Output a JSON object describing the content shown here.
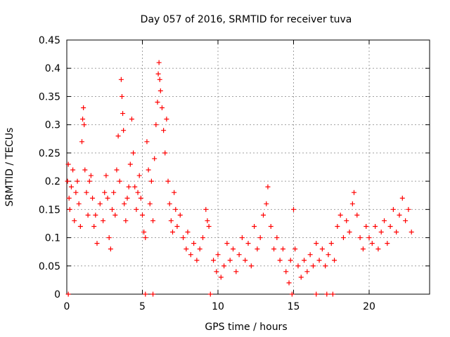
{
  "chart_data": {
    "type": "scatter",
    "title": "Day 057 of 2016, SRMTID for receiver tuva",
    "xlabel": "GPS time / hours",
    "ylabel": "SRMTID / TECUs",
    "xlim": [
      0,
      24
    ],
    "ylim": [
      0,
      0.45
    ],
    "xticks": [
      0,
      5,
      10,
      15,
      20
    ],
    "xtick_labels": [
      "0",
      "5",
      "10",
      "15",
      "20"
    ],
    "yticks": [
      0,
      0.05,
      0.1,
      0.15,
      0.2,
      0.25,
      0.3,
      0.35,
      0.4,
      0.45
    ],
    "ytick_labels": [
      "0",
      "0.05",
      "0.1",
      "0.15",
      "0.2",
      "0.25",
      "0.3",
      "0.35",
      "0.4",
      "0.45"
    ],
    "grid": true,
    "marker": "+",
    "color": "#ff0000",
    "series": [
      {
        "points": [
          [
            0.05,
            0.2
          ],
          [
            0.1,
            0.23
          ],
          [
            0.15,
            0.17
          ],
          [
            0.2,
            0.15
          ],
          [
            0.3,
            0.19
          ],
          [
            0.4,
            0.22
          ],
          [
            0.5,
            0.13
          ],
          [
            0.6,
            0.18
          ],
          [
            0.7,
            0.2
          ],
          [
            0.8,
            0.16
          ],
          [
            0.9,
            0.12
          ],
          [
            1.0,
            0.27
          ],
          [
            1.05,
            0.31
          ],
          [
            1.1,
            0.33
          ],
          [
            1.15,
            0.3
          ],
          [
            1.2,
            0.22
          ],
          [
            1.3,
            0.18
          ],
          [
            1.4,
            0.14
          ],
          [
            1.5,
            0.2
          ],
          [
            1.6,
            0.21
          ],
          [
            1.7,
            0.17
          ],
          [
            1.8,
            0.12
          ],
          [
            1.9,
            0.14
          ],
          [
            2.0,
            0.09
          ],
          [
            2.2,
            0.16
          ],
          [
            2.4,
            0.13
          ],
          [
            2.5,
            0.18
          ],
          [
            2.6,
            0.21
          ],
          [
            2.7,
            0.17
          ],
          [
            2.8,
            0.1
          ],
          [
            2.9,
            0.08
          ],
          [
            3.0,
            0.15
          ],
          [
            3.1,
            0.18
          ],
          [
            3.2,
            0.14
          ],
          [
            3.3,
            0.22
          ],
          [
            3.4,
            0.28
          ],
          [
            3.5,
            0.2
          ],
          [
            3.6,
            0.38
          ],
          [
            3.65,
            0.35
          ],
          [
            3.7,
            0.32
          ],
          [
            3.75,
            0.29
          ],
          [
            3.8,
            0.16
          ],
          [
            3.9,
            0.13
          ],
          [
            4.0,
            0.17
          ],
          [
            4.1,
            0.19
          ],
          [
            4.2,
            0.23
          ],
          [
            4.3,
            0.31
          ],
          [
            4.4,
            0.25
          ],
          [
            4.5,
            0.19
          ],
          [
            4.6,
            0.15
          ],
          [
            4.7,
            0.18
          ],
          [
            4.8,
            0.21
          ],
          [
            4.9,
            0.17
          ],
          [
            5.0,
            0.14
          ],
          [
            5.1,
            0.11
          ],
          [
            5.2,
            0.1
          ],
          [
            5.3,
            0.27
          ],
          [
            5.4,
            0.22
          ],
          [
            5.5,
            0.16
          ],
          [
            5.6,
            0.2
          ],
          [
            5.7,
            0.13
          ],
          [
            5.8,
            0.24
          ],
          [
            5.9,
            0.3
          ],
          [
            6.0,
            0.34
          ],
          [
            6.05,
            0.39
          ],
          [
            6.1,
            0.41
          ],
          [
            6.15,
            0.38
          ],
          [
            6.2,
            0.36
          ],
          [
            6.3,
            0.33
          ],
          [
            6.4,
            0.29
          ],
          [
            6.5,
            0.25
          ],
          [
            6.6,
            0.31
          ],
          [
            6.7,
            0.2
          ],
          [
            6.8,
            0.16
          ],
          [
            6.9,
            0.13
          ],
          [
            7.0,
            0.11
          ],
          [
            7.1,
            0.18
          ],
          [
            7.2,
            0.15
          ],
          [
            7.3,
            0.12
          ],
          [
            7.5,
            0.14
          ],
          [
            7.7,
            0.1
          ],
          [
            7.9,
            0.08
          ],
          [
            8.0,
            0.11
          ],
          [
            8.2,
            0.07
          ],
          [
            8.4,
            0.09
          ],
          [
            8.6,
            0.06
          ],
          [
            8.8,
            0.08
          ],
          [
            9.0,
            0.1
          ],
          [
            9.2,
            0.15
          ],
          [
            9.3,
            0.13
          ],
          [
            9.4,
            0.12
          ],
          [
            9.7,
            0.06
          ],
          [
            9.9,
            0.04
          ],
          [
            10.0,
            0.07
          ],
          [
            10.2,
            0.03
          ],
          [
            10.4,
            0.05
          ],
          [
            10.6,
            0.09
          ],
          [
            10.8,
            0.06
          ],
          [
            11.0,
            0.08
          ],
          [
            11.2,
            0.04
          ],
          [
            11.4,
            0.07
          ],
          [
            11.6,
            0.1
          ],
          [
            11.8,
            0.06
          ],
          [
            12.0,
            0.09
          ],
          [
            12.2,
            0.05
          ],
          [
            12.4,
            0.12
          ],
          [
            12.6,
            0.08
          ],
          [
            12.8,
            0.1
          ],
          [
            13.0,
            0.14
          ],
          [
            13.2,
            0.16
          ],
          [
            13.3,
            0.19
          ],
          [
            13.5,
            0.12
          ],
          [
            13.7,
            0.08
          ],
          [
            13.9,
            0.1
          ],
          [
            14.1,
            0.06
          ],
          [
            14.3,
            0.08
          ],
          [
            14.5,
            0.04
          ],
          [
            14.7,
            0.02
          ],
          [
            14.8,
            0.06
          ],
          [
            15.0,
            0.15
          ],
          [
            15.1,
            0.08
          ],
          [
            15.3,
            0.05
          ],
          [
            15.5,
            0.03
          ],
          [
            15.7,
            0.06
          ],
          [
            15.9,
            0.04
          ],
          [
            16.1,
            0.07
          ],
          [
            16.3,
            0.05
          ],
          [
            16.5,
            0.09
          ],
          [
            16.7,
            0.06
          ],
          [
            16.9,
            0.08
          ],
          [
            17.1,
            0.05
          ],
          [
            17.3,
            0.07
          ],
          [
            17.5,
            0.09
          ],
          [
            17.7,
            0.06
          ],
          [
            17.9,
            0.12
          ],
          [
            18.1,
            0.14
          ],
          [
            18.3,
            0.1
          ],
          [
            18.5,
            0.13
          ],
          [
            18.7,
            0.11
          ],
          [
            18.9,
            0.16
          ],
          [
            19.0,
            0.18
          ],
          [
            19.2,
            0.14
          ],
          [
            19.4,
            0.1
          ],
          [
            19.6,
            0.08
          ],
          [
            19.8,
            0.12
          ],
          [
            20.0,
            0.1
          ],
          [
            20.2,
            0.09
          ],
          [
            20.4,
            0.12
          ],
          [
            20.6,
            0.08
          ],
          [
            20.8,
            0.11
          ],
          [
            21.0,
            0.13
          ],
          [
            21.2,
            0.09
          ],
          [
            21.4,
            0.12
          ],
          [
            21.6,
            0.15
          ],
          [
            21.8,
            0.11
          ],
          [
            22.0,
            0.14
          ],
          [
            22.2,
            0.17
          ],
          [
            22.4,
            0.13
          ],
          [
            22.6,
            0.15
          ],
          [
            22.8,
            0.11
          ],
          [
            0.1,
            0.0
          ],
          [
            5.2,
            0.0
          ],
          [
            5.7,
            0.0
          ],
          [
            9.5,
            0.0
          ],
          [
            14.9,
            0.0
          ],
          [
            16.5,
            0.0
          ],
          [
            17.2,
            0.0
          ],
          [
            17.6,
            0.0
          ]
        ]
      }
    ]
  }
}
